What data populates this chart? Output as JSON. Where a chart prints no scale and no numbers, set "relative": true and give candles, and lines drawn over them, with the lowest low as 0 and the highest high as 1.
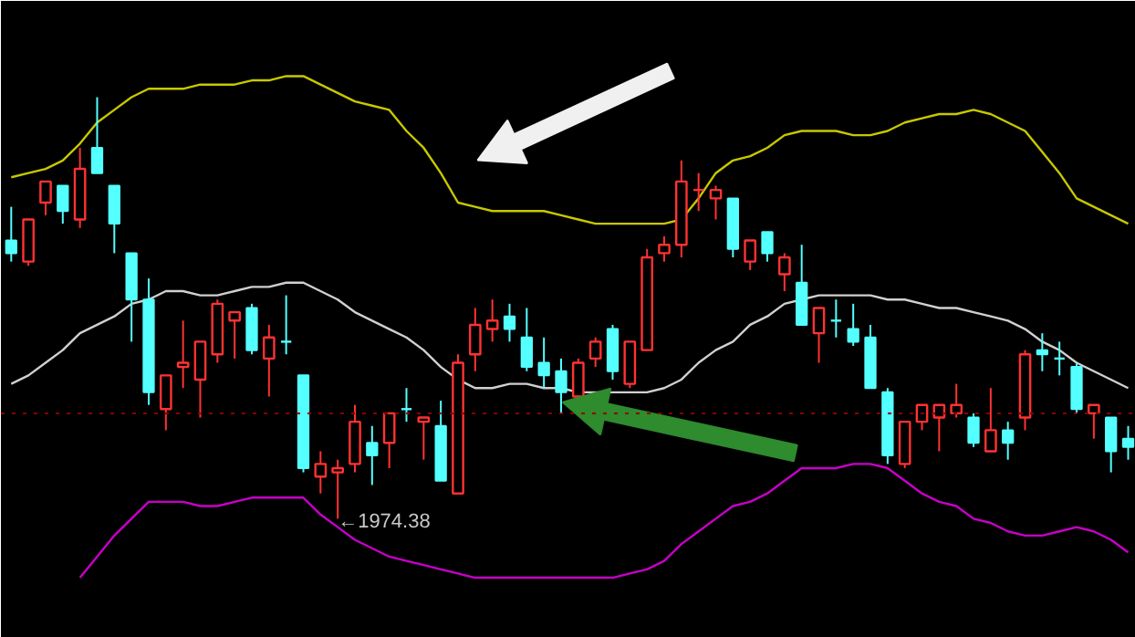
{
  "chart_data": {
    "type": "candlestick",
    "relative": true,
    "tick_labels": false,
    "grid": false,
    "categories": [
      null,
      null,
      null,
      null,
      null,
      null,
      null,
      null,
      null,
      null,
      null,
      null,
      null,
      null,
      null,
      null,
      null,
      null,
      null,
      null,
      null,
      null,
      null,
      null,
      null,
      null,
      null,
      null,
      null,
      null,
      null,
      null,
      null,
      null,
      null,
      null,
      null,
      null,
      null,
      null,
      null,
      null,
      null,
      null,
      null,
      null,
      null,
      null,
      null,
      null,
      null,
      null,
      null,
      null,
      null,
      null,
      null,
      null,
      null,
      null,
      null,
      null,
      null,
      null,
      null,
      null
    ],
    "ohlc": [
      [
        0.66,
        0.74,
        0.61,
        0.63
      ],
      [
        0.61,
        0.71,
        0.6,
        0.71
      ],
      [
        0.75,
        0.8,
        0.72,
        0.8
      ],
      [
        0.79,
        0.79,
        0.7,
        0.73
      ],
      [
        0.71,
        0.88,
        0.69,
        0.83
      ],
      [
        0.88,
        1,
        0.82,
        0.82
      ],
      [
        0.79,
        0.79,
        0.63,
        0.7
      ],
      [
        0.63,
        0.63,
        0.42,
        0.52
      ],
      [
        0.52,
        0.57,
        0.27,
        0.3
      ],
      [
        0.26,
        0.34,
        0.21,
        0.34
      ],
      [
        0.36,
        0.47,
        0.31,
        0.37
      ],
      [
        0.33,
        0.42,
        0.24,
        0.42
      ],
      [
        0.39,
        0.52,
        0.37,
        0.51
      ],
      [
        0.47,
        0.49,
        0.38,
        0.49
      ],
      [
        0.5,
        0.51,
        0.39,
        0.4
      ],
      [
        0.38,
        0.46,
        0.29,
        0.43
      ],
      [
        0.42,
        0.53,
        0.39,
        0.42
      ],
      [
        0.34,
        0.34,
        0.11,
        0.12
      ],
      [
        0.1,
        0.16,
        0.06,
        0.13
      ],
      [
        0.11,
        0.14,
        0,
        0.12
      ],
      [
        0.13,
        0.27,
        0.11,
        0.23
      ],
      [
        0.18,
        0.22,
        0.08,
        0.15
      ],
      [
        0.18,
        0.25,
        0.12,
        0.25
      ],
      [
        0.26,
        0.31,
        0.23,
        0.26
      ],
      [
        0.23,
        0.24,
        0.14,
        0.24
      ],
      [
        0.22,
        0.28,
        0.09,
        0.09
      ],
      [
        0.06,
        0.39,
        0.06,
        0.37
      ],
      [
        0.39,
        0.5,
        0.35,
        0.46
      ],
      [
        0.45,
        0.52,
        0.42,
        0.47
      ],
      [
        0.48,
        0.51,
        0.42,
        0.45
      ],
      [
        0.43,
        0.5,
        0.35,
        0.36
      ],
      [
        0.37,
        0.43,
        0.31,
        0.34
      ],
      [
        0.35,
        0.38,
        0.25,
        0.3
      ],
      [
        0.29,
        0.38,
        0.29,
        0.37
      ],
      [
        0.38,
        0.43,
        0.36,
        0.42
      ],
      [
        0.45,
        0.46,
        0.33,
        0.35
      ],
      [
        0.32,
        0.42,
        0.31,
        0.42
      ],
      [
        0.4,
        0.64,
        0.4,
        0.62
      ],
      [
        0.63,
        0.67,
        0.61,
        0.65
      ],
      [
        0.65,
        0.85,
        0.62,
        0.8
      ],
      [
        0.78,
        0.82,
        0.73,
        0.78
      ],
      [
        0.76,
        0.79,
        0.71,
        0.78
      ],
      [
        0.76,
        0.76,
        0.62,
        0.64
      ],
      [
        0.61,
        0.66,
        0.59,
        0.66
      ],
      [
        0.68,
        0.68,
        0.61,
        0.63
      ],
      [
        0.58,
        0.63,
        0.54,
        0.62
      ],
      [
        0.56,
        0.65,
        0.46,
        0.46
      ],
      [
        0.44,
        0.5,
        0.37,
        0.5
      ],
      [
        0.47,
        0.52,
        0.43,
        0.47
      ],
      [
        0.45,
        0.51,
        0.41,
        0.42
      ],
      [
        0.43,
        0.46,
        0.31,
        0.31
      ],
      [
        0.3,
        0.31,
        0.13,
        0.15
      ],
      [
        0.13,
        0.23,
        0.12,
        0.23
      ],
      [
        0.23,
        0.27,
        0.21,
        0.27
      ],
      [
        0.24,
        0.27,
        0.16,
        0.27
      ],
      [
        0.25,
        0.32,
        0.24,
        0.27
      ],
      [
        0.24,
        0.25,
        0.17,
        0.18
      ],
      [
        0.16,
        0.31,
        0.16,
        0.21
      ],
      [
        0.21,
        0.23,
        0.14,
        0.18
      ],
      [
        0.24,
        0.4,
        0.21,
        0.39
      ],
      [
        0.4,
        0.44,
        0.35,
        0.39
      ],
      [
        0.38,
        0.42,
        0.34,
        0.38
      ],
      [
        0.36,
        0.37,
        0.25,
        0.26
      ],
      [
        0.25,
        0.27,
        0.19,
        0.27
      ],
      [
        0.24,
        0.24,
        0.11,
        0.16
      ],
      [
        0.19,
        0.22,
        0.14,
        0.17
      ]
    ],
    "colors": [
      "#54ffff",
      "#ff3232",
      "#ff3232",
      "#54ffff",
      "#ff3232",
      "#54ffff",
      "#54ffff",
      "#54ffff",
      "#54ffff",
      "#ff3232",
      "#ff3232",
      "#ff3232",
      "#ff3232",
      "#ff3232",
      "#54ffff",
      "#ff3232",
      "#54ffff",
      "#54ffff",
      "#ff3232",
      "#ff3232",
      "#ff3232",
      "#54ffff",
      "#ff3232",
      "#54ffff",
      "#ff3232",
      "#54ffff",
      "#ff3232",
      "#ff3232",
      "#ff3232",
      "#54ffff",
      "#54ffff",
      "#54ffff",
      "#54ffff",
      "#ff3232",
      "#ff3232",
      "#54ffff",
      "#ff3232",
      "#ff3232",
      "#ff3232",
      "#ff3232",
      "#ff3232",
      "#ff3232",
      "#54ffff",
      "#ff3232",
      "#54ffff",
      "#ff3232",
      "#54ffff",
      "#ff3232",
      "#54ffff",
      "#54ffff",
      "#54ffff",
      "#54ffff",
      "#ff3232",
      "#ff3232",
      "#ff3232",
      "#ff3232",
      "#54ffff",
      "#ff3232",
      "#54ffff",
      "#ff3232",
      "#54ffff",
      "#54ffff",
      "#54ffff",
      "#ff3232",
      "#54ffff",
      "#54ffff"
    ],
    "series": [
      {
        "type": "line",
        "color": "#c8c800",
        "values": [
          0.81,
          0.82,
          0.83,
          0.85,
          0.89,
          0.94,
          0.97,
          1.0,
          1.02,
          1.02,
          1.02,
          1.03,
          1.03,
          1.03,
          1.04,
          1.04,
          1.05,
          1.05,
          1.03,
          1.01,
          0.99,
          0.98,
          0.97,
          0.92,
          0.88,
          0.82,
          0.75,
          0.74,
          0.73,
          0.73,
          0.73,
          0.73,
          0.72,
          0.71,
          0.7,
          0.7,
          0.7,
          0.7,
          0.7,
          0.71,
          0.76,
          0.82,
          0.85,
          0.86,
          0.88,
          0.91,
          0.92,
          0.92,
          0.92,
          0.91,
          0.91,
          0.92,
          0.94,
          0.95,
          0.96,
          0.96,
          0.97,
          0.96,
          0.94,
          0.92,
          0.87,
          0.82,
          0.76,
          0.74,
          0.72,
          0.7
        ]
      },
      {
        "type": "line",
        "color": "#d0d0d0",
        "values": [
          0.32,
          0.34,
          0.37,
          0.4,
          0.44,
          0.46,
          0.48,
          0.51,
          0.52,
          0.54,
          0.54,
          0.53,
          0.53,
          0.54,
          0.55,
          0.55,
          0.56,
          0.56,
          0.54,
          0.52,
          0.49,
          0.47,
          0.45,
          0.43,
          0.4,
          0.36,
          0.33,
          0.31,
          0.31,
          0.32,
          0.32,
          0.31,
          0.31,
          0.3,
          0.3,
          0.3,
          0.3,
          0.3,
          0.31,
          0.33,
          0.37,
          0.4,
          0.42,
          0.46,
          0.48,
          0.51,
          0.52,
          0.53,
          0.53,
          0.53,
          0.53,
          0.52,
          0.52,
          0.51,
          0.5,
          0.5,
          0.49,
          0.48,
          0.47,
          0.45,
          0.42,
          0.4,
          0.37,
          0.35,
          0.33,
          0.31
        ]
      },
      {
        "type": "line",
        "color": "#c800c8",
        "values": [
          null,
          null,
          null,
          null,
          -0.14,
          -0.09,
          -0.04,
          0.0,
          0.04,
          0.04,
          0.04,
          0.03,
          0.03,
          0.04,
          0.05,
          0.05,
          0.05,
          0.05,
          0.01,
          -0.02,
          -0.05,
          -0.07,
          -0.09,
          -0.1,
          -0.11,
          -0.12,
          -0.13,
          -0.14,
          -0.14,
          -0.14,
          -0.14,
          -0.14,
          -0.14,
          -0.14,
          -0.14,
          -0.14,
          -0.13,
          -0.12,
          -0.1,
          -0.06,
          -0.03,
          0.0,
          0.03,
          0.04,
          0.06,
          0.09,
          0.12,
          0.12,
          0.12,
          0.13,
          0.13,
          0.12,
          0.09,
          0.06,
          0.04,
          0.03,
          0.0,
          -0.01,
          -0.03,
          -0.04,
          -0.04,
          -0.03,
          -0.02,
          -0.03,
          -0.05,
          -0.08
        ]
      }
    ],
    "ref_lines": [
      {
        "axis": "y",
        "value": 0.25,
        "color": "#8b0000",
        "line_style": "dotted"
      }
    ],
    "annotations": [
      "←1974.38"
    ]
  }
}
